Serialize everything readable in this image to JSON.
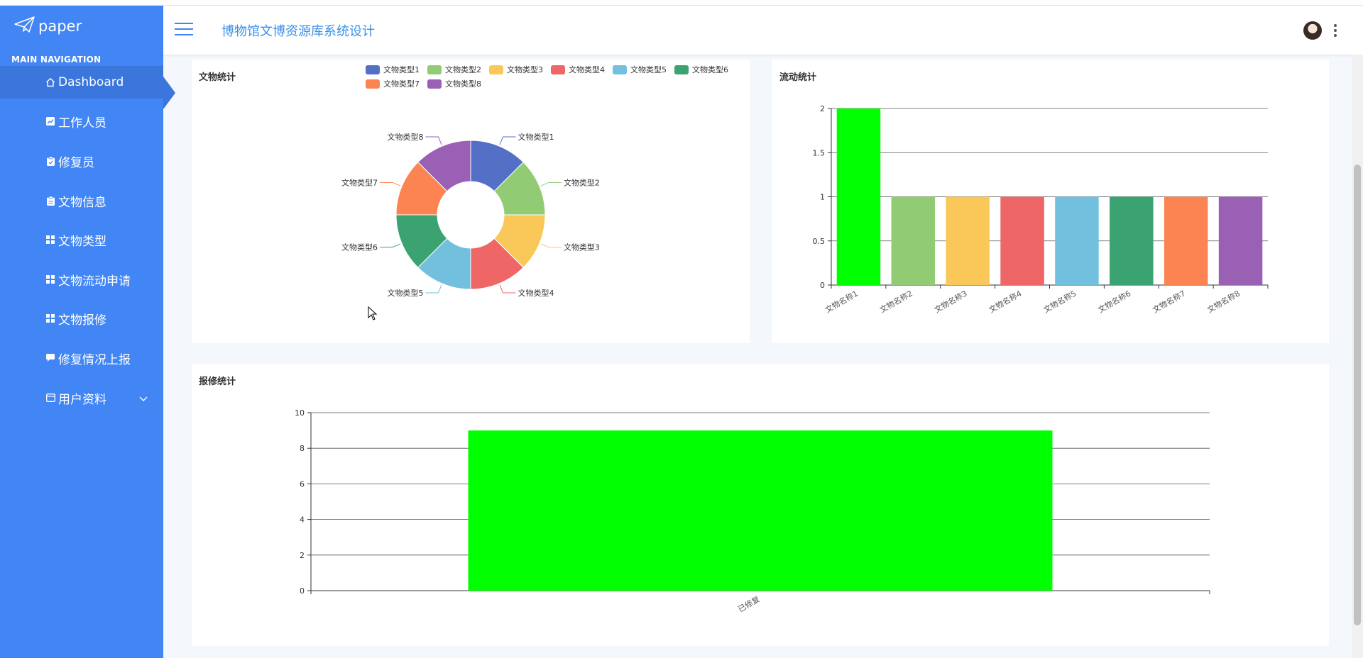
{
  "brand": {
    "name": "paper"
  },
  "sidebar": {
    "section_title": "MAIN NAVIGATION",
    "items": [
      {
        "label": "Dashboard",
        "icon": "home-icon",
        "active": true
      },
      {
        "label": "工作人员",
        "icon": "chart-icon"
      },
      {
        "label": "修复员",
        "icon": "clipboard-icon"
      },
      {
        "label": "文物信息",
        "icon": "clipboard-icon"
      },
      {
        "label": "文物类型",
        "icon": "grid-icon"
      },
      {
        "label": "文物流动申请",
        "icon": "grid-icon"
      },
      {
        "label": "文物报修",
        "icon": "grid-icon"
      },
      {
        "label": "修复情况上报",
        "icon": "comment-icon"
      },
      {
        "label": "用户资料",
        "icon": "id-card-icon",
        "expandable": true
      }
    ]
  },
  "header": {
    "title": "博物馆文博资源库系统设计"
  },
  "colors": {
    "sidebar": "#4285f4",
    "palette": [
      "#5470c6",
      "#91cc75",
      "#fac858",
      "#ee6666",
      "#73c0de",
      "#3ba272",
      "#fc8452",
      "#9a60b4"
    ],
    "highlight": "#00ff00"
  },
  "chart_data": [
    {
      "type": "pie",
      "variant": "donut",
      "title": "文物统计",
      "legend_placement": "top-right",
      "categories": [
        "文物类型1",
        "文物类型2",
        "文物类型3",
        "文物类型4",
        "文物类型5",
        "文物类型6",
        "文物类型7",
        "文物类型8"
      ],
      "values": [
        1,
        1,
        1,
        1,
        1,
        1,
        1,
        1
      ]
    },
    {
      "type": "bar",
      "title": "流动统计",
      "categories": [
        "文物名称1",
        "文物名称2",
        "文物名称3",
        "文物名称4",
        "文物名称5",
        "文物名称6",
        "文物名称7",
        "文物名称8"
      ],
      "values": [
        2,
        1,
        1,
        1,
        1,
        1,
        1,
        1
      ],
      "ylim": [
        0,
        2
      ],
      "yticks": [
        "0",
        "0.5",
        "1",
        "1.5",
        "2"
      ],
      "grid": true
    },
    {
      "type": "bar",
      "title": "报修统计",
      "categories": [
        "已修复"
      ],
      "values": [
        9
      ],
      "ylim": [
        0,
        10
      ],
      "yticks": [
        "0",
        "2",
        "4",
        "6",
        "8",
        "10"
      ],
      "grid": true
    }
  ]
}
